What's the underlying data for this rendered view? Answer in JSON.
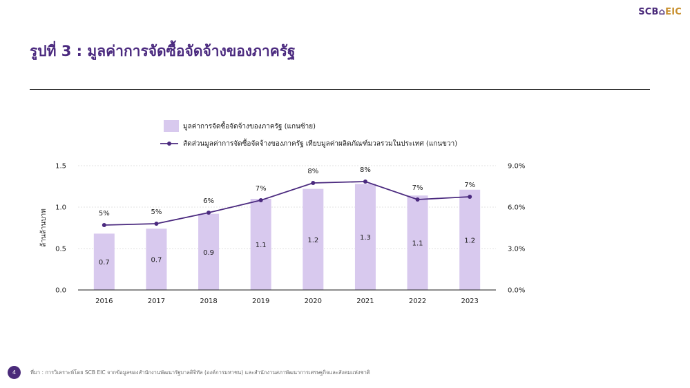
{
  "brand": {
    "main": "SCB",
    "sub": "EIC"
  },
  "page": {
    "title": "รูปที่ 3 : มูลค่าการจัดซื้อจัดจ้างของภาครัฐ",
    "number": "4",
    "source": "ที่มา : การวิเคราะห์โดย SCB EIC จากข้อมูลของสำนักงานพัฒนารัฐบาลดิจิทัล (องค์การมหาชน) และสำนักงานสภาพัฒนาการเศรษฐกิจและสังคมแห่งชาติ"
  },
  "colors": {
    "bar": "#d8c9ee",
    "line": "#4b2a7f",
    "title": "#4b2a7f",
    "axis": "#1a1a1a",
    "grid": "#d6d6d6"
  },
  "chart_data": {
    "type": "bar",
    "categories": [
      "2016",
      "2017",
      "2018",
      "2019",
      "2020",
      "2021",
      "2022",
      "2023"
    ],
    "series": [
      {
        "name": "มูลค่าการจัดซื้อจัดจ้างของภาครัฐ (แกนซ้าย)",
        "type": "bar",
        "axis": "left",
        "values": [
          0.68,
          0.74,
          0.92,
          1.1,
          1.22,
          1.28,
          1.14,
          1.21
        ],
        "labels": [
          "0.7",
          "0.7",
          "0.9",
          "1.1",
          "1.2",
          "1.3",
          "1.1",
          "1.2"
        ]
      },
      {
        "name": "สัดส่วนมูลค่าการจัดซื้อจัดจ้างของภาครัฐ เทียบมูลค่าผลิตภัณฑ์มวลรวมในประเทศ (แกนขวา)",
        "type": "line",
        "axis": "right",
        "values": [
          4.7,
          4.8,
          5.6,
          6.5,
          7.75,
          7.85,
          6.55,
          6.75
        ],
        "labels": [
          "5%",
          "5%",
          "6%",
          "7%",
          "8%",
          "8%",
          "7%",
          "7%"
        ]
      }
    ],
    "ylabel": "ล้านล้านบาท",
    "ylim": [
      0,
      1.5
    ],
    "y_ticks": [
      "0.0",
      "0.5",
      "1.0",
      "1.5"
    ],
    "y2lim": [
      0,
      9
    ],
    "y2_ticks": [
      "0.0%",
      "3.0%",
      "6.0%",
      "9.0%"
    ],
    "grid": true,
    "legend_position": "top"
  }
}
